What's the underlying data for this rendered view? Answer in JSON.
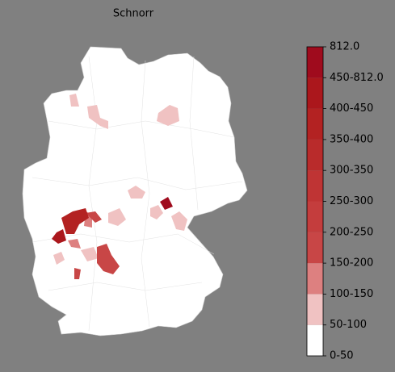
{
  "title": "Schnorr",
  "colorbar": {
    "labels": [
      "0-50",
      "50-100",
      "100-150",
      "150-200",
      "200-250",
      "250-300",
      "300-350",
      "350-400",
      "400-450",
      "450-812.0",
      "812.0"
    ],
    "colors": [
      "#ffffff",
      "#f0c2c2",
      "#dd8080",
      "#c84646",
      "#c43d3d",
      "#bf3434",
      "#b92b2b",
      "#b32222",
      "#ab171c",
      "#9f0b1d"
    ]
  }
}
